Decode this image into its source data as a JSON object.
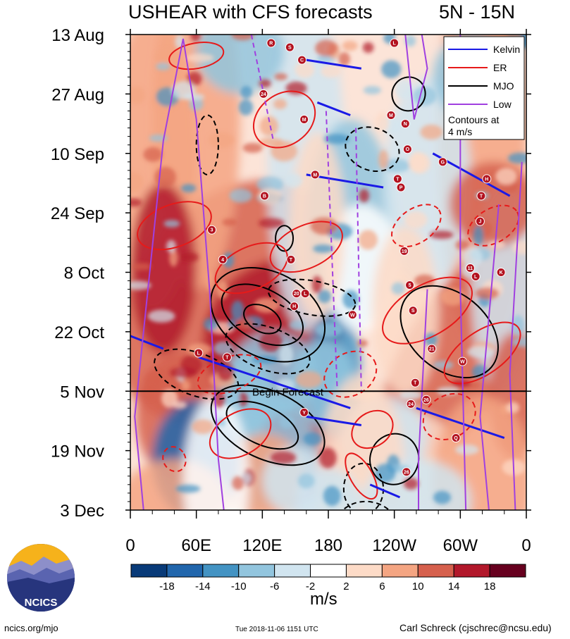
{
  "chart_data": {
    "type": "heatmap",
    "title": "USHEAR with CFS forecasts",
    "region_label": "5N - 15N",
    "y_labels": [
      "13 Aug",
      "27 Aug",
      "10 Sep",
      "24 Sep",
      "8 Oct",
      "22 Oct",
      "5 Nov",
      "19 Nov",
      "3 Dec"
    ],
    "x_labels": [
      "0",
      "60E",
      "120E",
      "180",
      "120W",
      "60W",
      "0"
    ],
    "x_degrees": [
      0,
      60,
      120,
      180,
      240,
      300,
      360
    ],
    "y_days": [
      0,
      14,
      28,
      42,
      56,
      70,
      84,
      98,
      112
    ],
    "forecast_begin_day": 84,
    "forecast_label": "Begin Forecast",
    "legend": [
      {
        "name": "Kelvin",
        "color": "#1a1ae6"
      },
      {
        "name": "ER",
        "color": "#e61a1a"
      },
      {
        "name": "MJO",
        "color": "#000000"
      },
      {
        "name": "Low",
        "color": "#a040e0"
      }
    ],
    "contour_note": "Contours at 4 m/s",
    "colorbar": {
      "unit": "m/s",
      "tick_labels": [
        "-18",
        "-14",
        "-10",
        "-6",
        "-2",
        "2",
        "6",
        "10",
        "14",
        "18"
      ],
      "colors": [
        "#083a78",
        "#2166ac",
        "#4393c3",
        "#92c5de",
        "#d1e5f0",
        "#ffffff",
        "#fddbc7",
        "#f4a582",
        "#d6604d",
        "#b2182b",
        "#67001f"
      ]
    },
    "storms": [
      {
        "label": "R",
        "lon": 128,
        "day": 2
      },
      {
        "label": "S",
        "lon": 145,
        "day": 3
      },
      {
        "label": "C",
        "lon": 156,
        "day": 6
      },
      {
        "label": "L",
        "lon": 240,
        "day": 2
      },
      {
        "label": "24",
        "lon": 121,
        "day": 14
      },
      {
        "label": "M",
        "lon": 158,
        "day": 20
      },
      {
        "label": "M",
        "lon": 237,
        "day": 19
      },
      {
        "label": "N",
        "lon": 250,
        "day": 21
      },
      {
        "label": "O",
        "lon": 252,
        "day": 27
      },
      {
        "label": "G",
        "lon": 284,
        "day": 30
      },
      {
        "label": "P",
        "lon": 246,
        "day": 36
      },
      {
        "label": "B",
        "lon": 122,
        "day": 38
      },
      {
        "label": "M",
        "lon": 168,
        "day": 33
      },
      {
        "label": "T",
        "lon": 243,
        "day": 34
      },
      {
        "label": "H",
        "lon": 324,
        "day": 34
      },
      {
        "label": "T",
        "lon": 319,
        "day": 38
      },
      {
        "label": "J",
        "lon": 318,
        "day": 44
      },
      {
        "label": "3",
        "lon": 74,
        "day": 46
      },
      {
        "label": "4",
        "lon": 84,
        "day": 53
      },
      {
        "label": "T",
        "lon": 146,
        "day": 53
      },
      {
        "label": "19",
        "lon": 249,
        "day": 51
      },
      {
        "label": "11",
        "lon": 309,
        "day": 55
      },
      {
        "label": "L",
        "lon": 314,
        "day": 57
      },
      {
        "label": "K",
        "lon": 337,
        "day": 56
      },
      {
        "label": "5",
        "lon": 254,
        "day": 59
      },
      {
        "label": "20",
        "lon": 151,
        "day": 61
      },
      {
        "label": "L",
        "lon": 159,
        "day": 61
      },
      {
        "label": "H",
        "lon": 149,
        "day": 64
      },
      {
        "label": "W",
        "lon": 202,
        "day": 66
      },
      {
        "label": "S",
        "lon": 257,
        "day": 65
      },
      {
        "label": "L",
        "lon": 62,
        "day": 75
      },
      {
        "label": "T",
        "lon": 88,
        "day": 76
      },
      {
        "label": "21",
        "lon": 274,
        "day": 74
      },
      {
        "label": "W",
        "lon": 302,
        "day": 77
      },
      {
        "label": "T",
        "lon": 259,
        "day": 82
      },
      {
        "label": "26",
        "lon": 269,
        "day": 86
      },
      {
        "label": "24",
        "lon": 255,
        "day": 87
      },
      {
        "label": "Y",
        "lon": 158,
        "day": 89
      },
      {
        "label": "Q",
        "lon": 296,
        "day": 95
      },
      {
        "label": "26",
        "lon": 251,
        "day": 103
      }
    ]
  },
  "branding": {
    "logo_text": "NCICS",
    "site": "ncics.org/mjo",
    "timestamp": "Tue 2018-11-06 1151 UTC",
    "author": "Carl Schreck (cjschrec@ncsu.edu)"
  }
}
